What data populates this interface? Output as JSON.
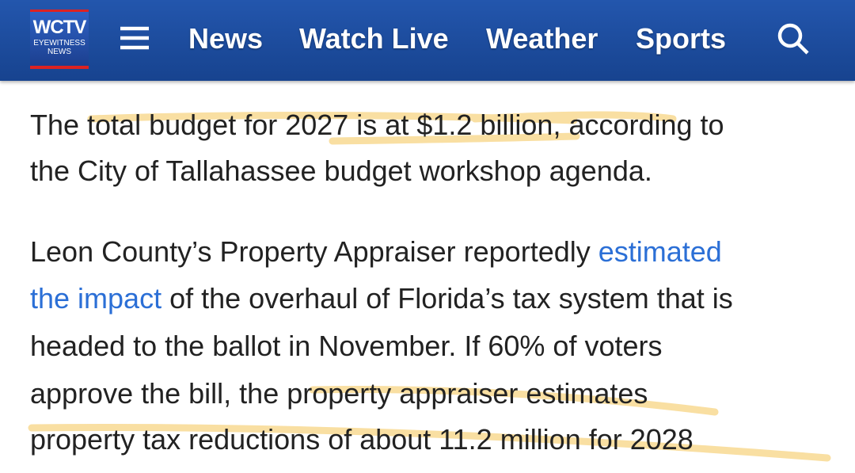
{
  "header": {
    "logo": {
      "name": "WCTV",
      "line1": "EYEWITNESS",
      "line2": "NEWS"
    },
    "nav": [
      "News",
      "Watch Live",
      "Weather",
      "Sports"
    ]
  },
  "article": {
    "paragraphs": [
      {
        "lines": [
          "The total budget for 2027 is at $1.2 billion, according to",
          "the City of Tallahassee budget workshop agenda."
        ]
      },
      {
        "lines": [
          [
            "Leon County’s Property Appraiser reportedly ",
            "estimated"
          ],
          [
            "the impact",
            " of the overhaul of Florida’s tax system that is"
          ],
          "headed to the ballot in November. If 60% of voters",
          "approve the bill, the property appraiser estimates",
          "property tax reductions of about 11.2 million for 2028"
        ]
      }
    ]
  }
}
